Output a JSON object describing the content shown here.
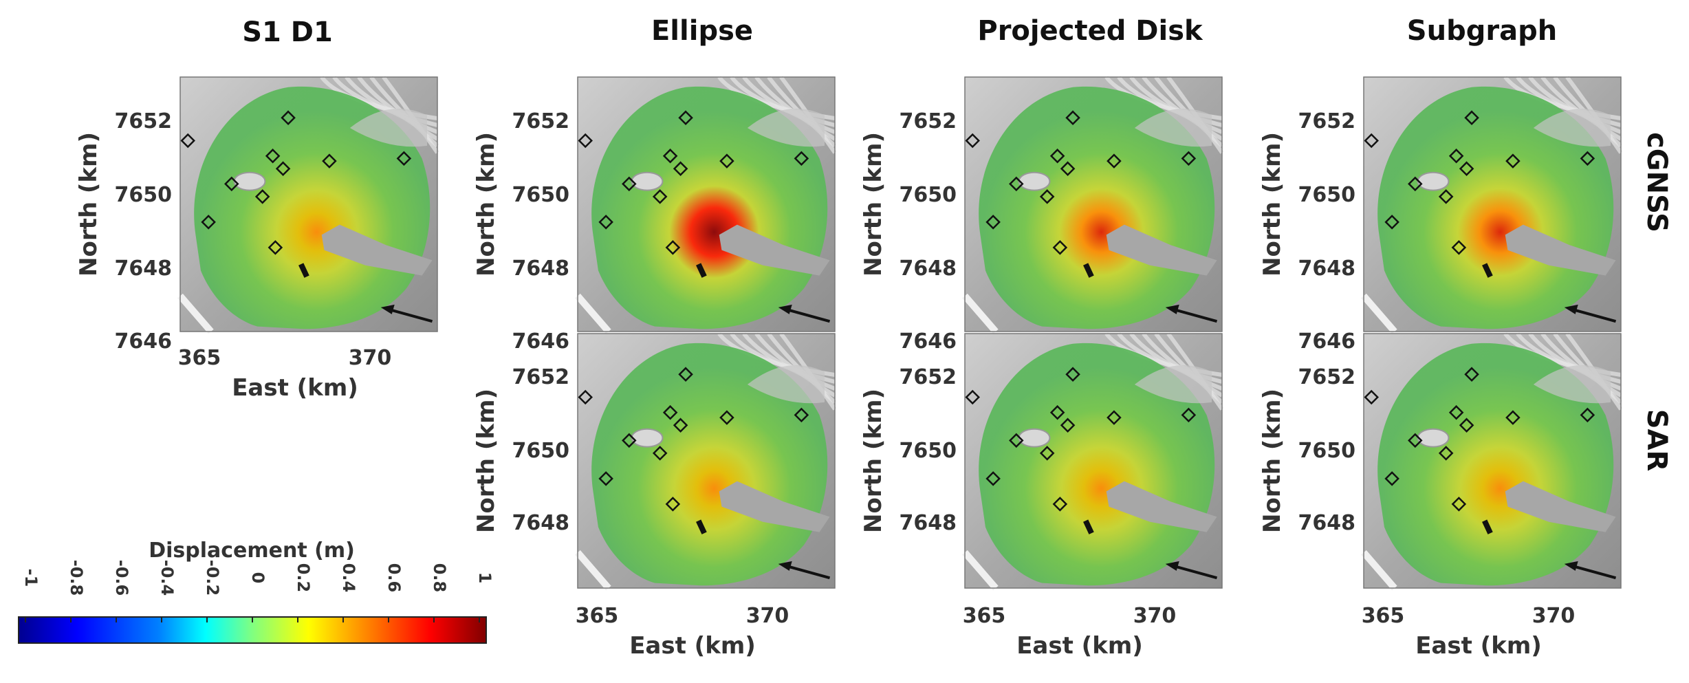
{
  "columns": [
    {
      "title": "S1 D1"
    },
    {
      "title": "Ellipse"
    },
    {
      "title": "Projected Disk"
    },
    {
      "title": "Subgraph"
    }
  ],
  "rows": [
    {
      "label": "cGNSS"
    },
    {
      "label": "SAR"
    }
  ],
  "axes": {
    "xlabel": "East (km)",
    "ylabel": "North (km)",
    "xticks": [
      "365",
      "370"
    ],
    "yticks_top": [
      "7652",
      "7650",
      "7648",
      "7646"
    ],
    "yticks_bottom": [
      "7652",
      "7650",
      "7648"
    ]
  },
  "panels": [
    {
      "col": 0,
      "row": 0,
      "peak": 0.55
    },
    {
      "col": 1,
      "row": 0,
      "peak": 1.0
    },
    {
      "col": 2,
      "row": 0,
      "peak": 0.7
    },
    {
      "col": 3,
      "row": 0,
      "peak": 0.75
    },
    {
      "col": 1,
      "row": 1,
      "peak": 0.5
    },
    {
      "col": 2,
      "row": 1,
      "peak": 0.5
    },
    {
      "col": 3,
      "row": 1,
      "peak": 0.5
    }
  ],
  "colorbar": {
    "title": "Displacement (m)",
    "ticks": [
      "-1",
      "-0.8",
      "-0.6",
      "-0.4",
      "-0.2",
      "0",
      "0.2",
      "0.4",
      "0.6",
      "0.8",
      "1"
    ],
    "colors": [
      "#00008f",
      "#0000ff",
      "#0080ff",
      "#00ffff",
      "#80ff80",
      "#ffff00",
      "#ff8000",
      "#ff0000",
      "#800000"
    ]
  },
  "stations": [
    [
      0.03,
      0.25
    ],
    [
      0.42,
      0.16
    ],
    [
      0.36,
      0.31
    ],
    [
      0.4,
      0.36
    ],
    [
      0.58,
      0.33
    ],
    [
      0.87,
      0.32
    ],
    [
      0.2,
      0.42
    ],
    [
      0.32,
      0.47
    ],
    [
      0.11,
      0.57
    ],
    [
      0.37,
      0.67
    ]
  ]
}
